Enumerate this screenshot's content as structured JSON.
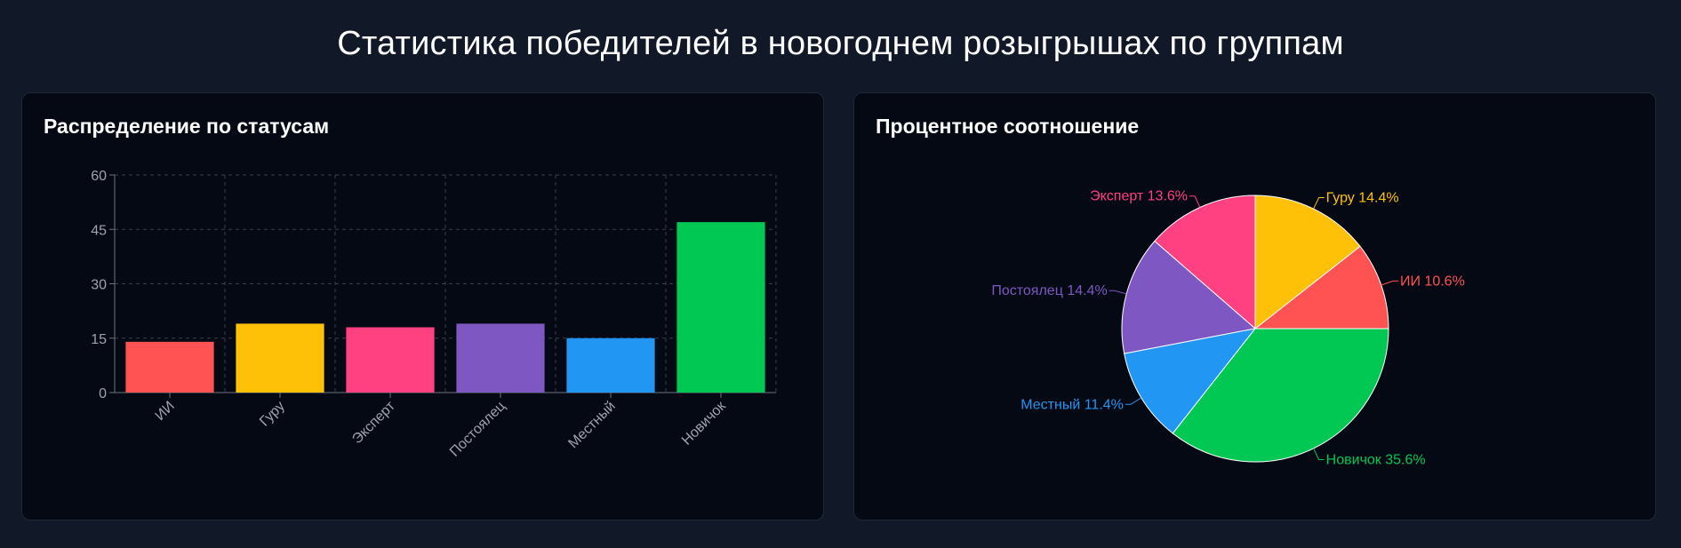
{
  "page": {
    "title": "Статистика победителей в новогоднем розыгрышах по группам"
  },
  "colors": {
    "background": "#111827",
    "card": "#050914",
    "grid": "#374151",
    "axis_text": "#9ca3af"
  },
  "bar_panel": {
    "title": "Распределение по статусам"
  },
  "pie_panel": {
    "title": "Процентное соотношение"
  },
  "chart_data": [
    {
      "type": "bar",
      "title": "Распределение по статусам",
      "categories": [
        "ИИ",
        "Гуру",
        "Эксперт",
        "Постоялец",
        "Местный",
        "Новичок"
      ],
      "values": [
        14,
        19,
        18,
        19,
        15,
        47
      ],
      "colors": [
        "#ff5252",
        "#ffc107",
        "#ff4081",
        "#7e57c2",
        "#2196f3",
        "#00c853"
      ],
      "ylim": [
        0,
        60
      ],
      "yticks": [
        0,
        15,
        30,
        45,
        60
      ],
      "grid": true,
      "xlabel": "",
      "ylabel": ""
    },
    {
      "type": "pie",
      "title": "Процентное соотношение",
      "labels": [
        "ИИ",
        "Гуру",
        "Эксперт",
        "Постоялец",
        "Местный",
        "Новичок"
      ],
      "values": [
        10.6,
        14.4,
        13.6,
        14.4,
        11.4,
        35.6
      ],
      "label_texts": [
        "ИИ 10.6%",
        "Гуру 14.4%",
        "Эксперт 13.6%",
        "Постоялец 14.4%",
        "Местный 11.4%",
        "Новичок 35.6%"
      ],
      "colors": [
        "#ff5252",
        "#ffc107",
        "#ff4081",
        "#7e57c2",
        "#2196f3",
        "#00c853"
      ]
    }
  ]
}
